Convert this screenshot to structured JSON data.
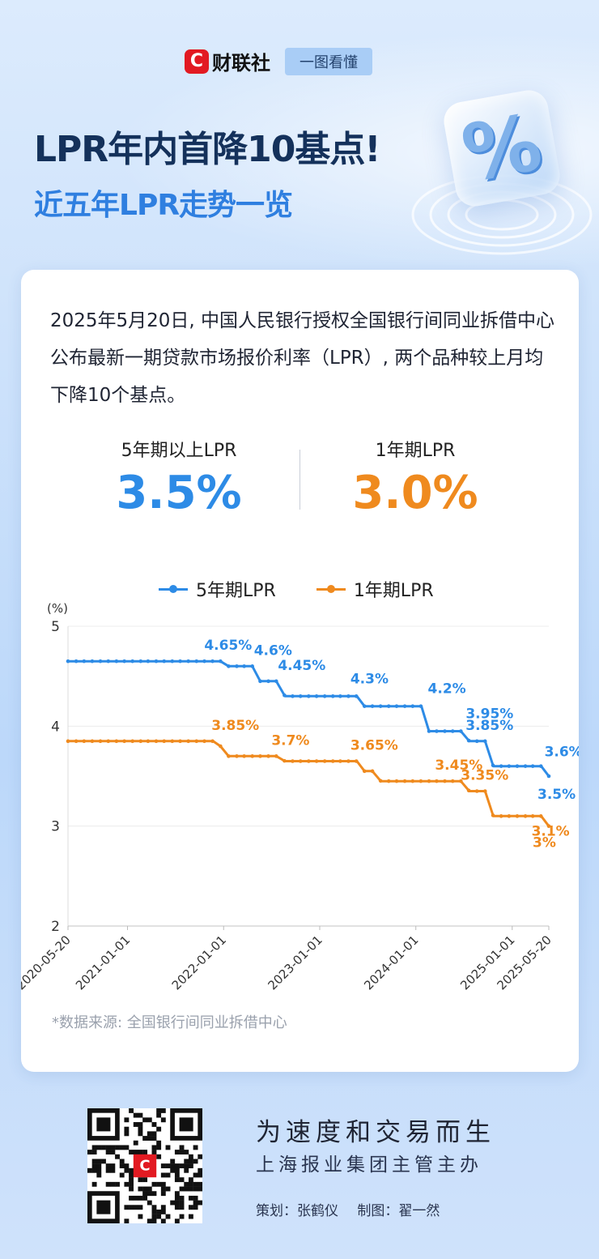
{
  "brand": {
    "name": "财联社",
    "mark": "C",
    "tag": "一图看懂"
  },
  "header": {
    "title": "LPR年内首降10基点!",
    "subtitle": "近五年LPR走势一览",
    "badge_symbol": "%"
  },
  "intro": "2025年5月20日, 中国人民银行授权全国银行间同业拆借中心公布最新一期贷款市场报价利率（LPR）, 两个品种较上月均下降10个基点。",
  "stats": {
    "five_year": {
      "label": "5年期以上LPR",
      "value": "3.5%"
    },
    "one_year": {
      "label": "1年期LPR",
      "value": "3.0%"
    }
  },
  "colors": {
    "five_year": "#2d8be6",
    "one_year": "#ef8a1e",
    "title": "#14315b",
    "subtitle": "#2f7fe0"
  },
  "chart_data": {
    "type": "line",
    "ylabel": "(%)",
    "ylim": [
      2,
      5
    ],
    "yticks": [
      2,
      3,
      4,
      5
    ],
    "grid": true,
    "legend_position": "top",
    "xticks": [
      "2020-05-20",
      "2021-01-01",
      "2022-01-01",
      "2023-01-01",
      "2024-01-01",
      "2025-01-01",
      "2025-05-20"
    ],
    "series": [
      {
        "name": "5年期LPR",
        "points": [
          [
            "2020-05-20",
            4.65
          ],
          [
            "2021-12-20",
            4.65
          ],
          [
            "2022-01-20",
            4.6
          ],
          [
            "2022-04-20",
            4.6
          ],
          [
            "2022-05-20",
            4.45
          ],
          [
            "2022-07-20",
            4.45
          ],
          [
            "2022-08-22",
            4.3
          ],
          [
            "2023-05-22",
            4.3
          ],
          [
            "2023-06-20",
            4.2
          ],
          [
            "2024-01-22",
            4.2
          ],
          [
            "2024-02-20",
            3.95
          ],
          [
            "2024-06-20",
            3.95
          ],
          [
            "2024-07-22",
            3.85
          ],
          [
            "2024-09-20",
            3.85
          ],
          [
            "2024-10-21",
            3.6
          ],
          [
            "2025-04-21",
            3.6
          ],
          [
            "2025-05-20",
            3.5
          ]
        ],
        "labels": [
          {
            "date": "2021-12-20",
            "value": 4.65,
            "text": "4.65%"
          },
          {
            "date": "2022-04-20",
            "value": 4.6,
            "text": "4.6%"
          },
          {
            "date": "2022-07-20",
            "value": 4.45,
            "text": "4.45%"
          },
          {
            "date": "2023-05-22",
            "value": 4.3,
            "text": "4.3%"
          },
          {
            "date": "2024-01-22",
            "value": 4.2,
            "text": "4.2%"
          },
          {
            "date": "2024-06-20",
            "value": 3.95,
            "text": "3.95%"
          },
          {
            "date": "2024-09-20",
            "value": 3.85,
            "text": "3.85%"
          },
          {
            "date": "2025-04-21",
            "value": 3.6,
            "text": "3.6%"
          },
          {
            "date": "2025-05-20",
            "value": 3.5,
            "text": "3.5%"
          }
        ]
      },
      {
        "name": "1年期LPR",
        "points": [
          [
            "2020-05-20",
            3.85
          ],
          [
            "2021-11-22",
            3.85
          ],
          [
            "2021-12-20",
            3.8
          ],
          [
            "2022-01-20",
            3.7
          ],
          [
            "2022-07-20",
            3.7
          ],
          [
            "2022-08-22",
            3.65
          ],
          [
            "2023-05-22",
            3.65
          ],
          [
            "2023-06-20",
            3.55
          ],
          [
            "2023-07-20",
            3.55
          ],
          [
            "2023-08-21",
            3.45
          ],
          [
            "2024-06-20",
            3.45
          ],
          [
            "2024-07-22",
            3.35
          ],
          [
            "2024-09-20",
            3.35
          ],
          [
            "2024-10-21",
            3.1
          ],
          [
            "2025-04-21",
            3.1
          ],
          [
            "2025-05-20",
            3.0
          ]
        ],
        "labels": [
          {
            "date": "2021-11-22",
            "value": 3.85,
            "text": "3.85%"
          },
          {
            "date": "2022-07-20",
            "value": 3.7,
            "text": "3.7%"
          },
          {
            "date": "2023-05-22",
            "value": 3.65,
            "text": "3.65%"
          },
          {
            "date": "2024-06-20",
            "value": 3.45,
            "text": "3.45%"
          },
          {
            "date": "2024-09-20",
            "value": 3.35,
            "text": "3.35%"
          },
          {
            "date": "2025-04-21",
            "value": 3.1,
            "text": "3.1%"
          },
          {
            "date": "2025-05-20",
            "value": 3.0,
            "text": "3%"
          }
        ]
      }
    ]
  },
  "source": "*数据来源: 全国银行间同业拆借中心",
  "footer": {
    "qr_mark": "C",
    "slogan": "为速度和交易而生",
    "org": "上海报业集团主管主办",
    "planner": "策划：张鹤仪",
    "designer": "制图：翟一然"
  }
}
